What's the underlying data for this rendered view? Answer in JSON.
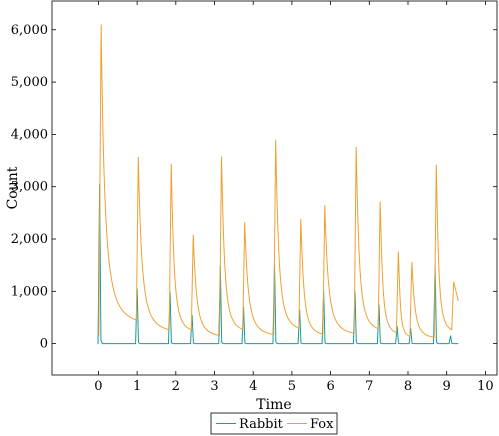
{
  "chart_data": {
    "type": "line",
    "xlabel": "Time",
    "ylabel": "Count",
    "xlim": [
      -1.2,
      10.3
    ],
    "ylim": [
      -600,
      6550
    ],
    "xticks": [
      0,
      1,
      2,
      3,
      4,
      5,
      6,
      7,
      8,
      9,
      10
    ],
    "xtick_labels": [
      "0",
      "1",
      "2",
      "3",
      "4",
      "5",
      "6",
      "7",
      "8",
      "9",
      "10"
    ],
    "yticks": [
      0,
      1000,
      2000,
      3000,
      4000,
      5000,
      6000
    ],
    "ytick_labels": [
      "0",
      "1,000",
      "2,000",
      "3,000",
      "4,000",
      "5,000",
      "6,000"
    ],
    "grid": false,
    "legend_position": "bottom-center",
    "legend_entries": [
      "Rabbit",
      "Fox"
    ],
    "series": [
      {
        "name": "Rabbit",
        "color": "#1a9a9a",
        "spikes": [
          [
            0.03,
            3050
          ],
          [
            1.0,
            1050
          ],
          [
            1.85,
            1000
          ],
          [
            2.42,
            550
          ],
          [
            3.15,
            1500
          ],
          [
            3.75,
            700
          ],
          [
            4.55,
            1550
          ],
          [
            5.2,
            650
          ],
          [
            5.82,
            1000
          ],
          [
            6.63,
            1000
          ],
          [
            7.25,
            750
          ],
          [
            7.72,
            330
          ],
          [
            8.07,
            290
          ],
          [
            8.7,
            1500
          ],
          [
            9.1,
            150
          ]
        ],
        "baseline": 0
      },
      {
        "name": "Fox",
        "color": "#f0a030",
        "peaks": [
          [
            0.07,
            6100
          ],
          [
            1.03,
            3570
          ],
          [
            1.88,
            3440
          ],
          [
            2.45,
            2080
          ],
          [
            3.18,
            3580
          ],
          [
            3.78,
            2320
          ],
          [
            4.58,
            3900
          ],
          [
            5.23,
            2380
          ],
          [
            5.85,
            2650
          ],
          [
            6.66,
            3760
          ],
          [
            7.28,
            2720
          ],
          [
            7.75,
            1760
          ],
          [
            8.1,
            1560
          ],
          [
            8.73,
            3420
          ],
          [
            9.18,
            1180
          ]
        ],
        "end": [
          9.3,
          820
        ]
      }
    ]
  }
}
